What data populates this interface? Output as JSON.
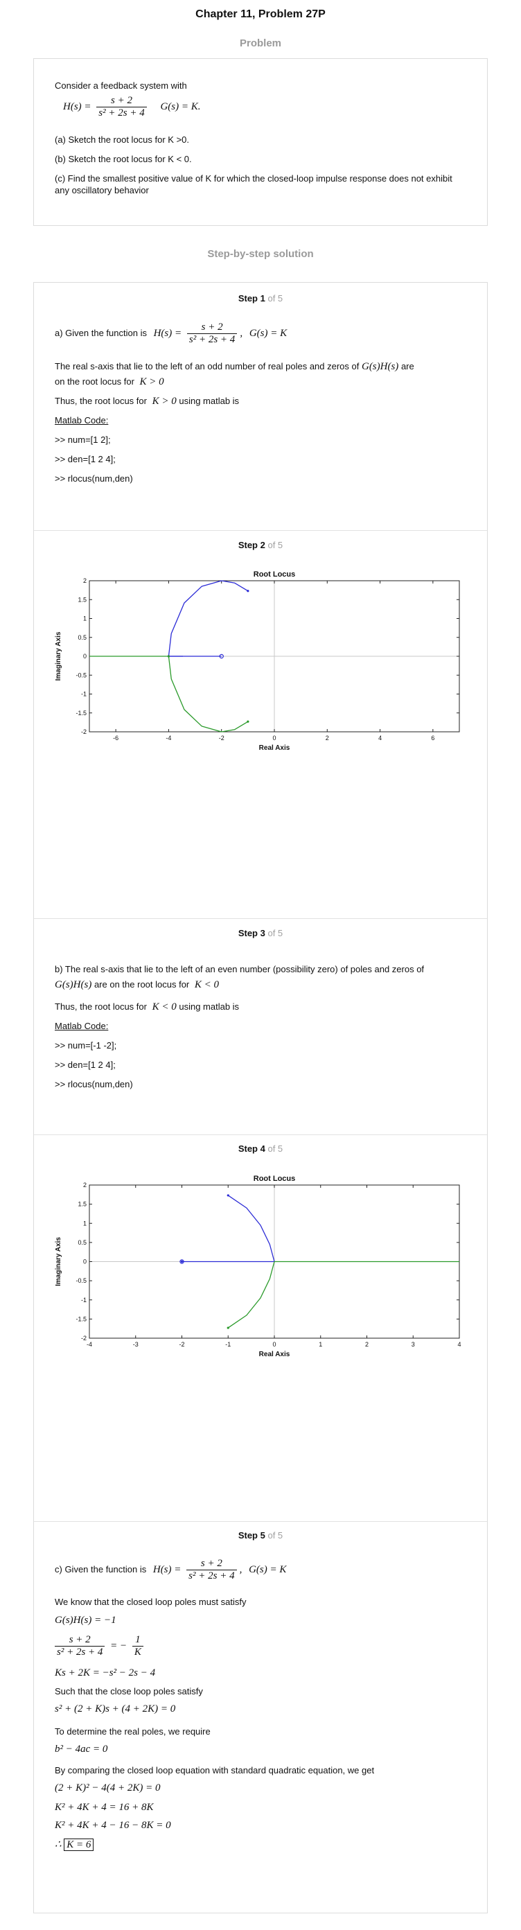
{
  "chapter_title": "Chapter 11, Problem 27P",
  "problem_heading": "Problem",
  "problem": {
    "intro": "Consider a feedback system with",
    "H_label": "H(s) =",
    "H_num": "s + 2",
    "H_den": "s² + 2s + 4",
    "G_label": "G(s) = K.",
    "a": "(a) Sketch the root locus for K >0.",
    "b": "(b) Sketch the root locus for K < 0.",
    "c": "(c) Find the smallest positive value of K for which the closed-loop impulse response does not exhibit any oscillatory behavior"
  },
  "solution_heading": "Step-by-step solution",
  "steps": [
    {
      "label": "Step 1",
      "of": "of 5"
    },
    {
      "label": "Step 2",
      "of": "of 5"
    },
    {
      "label": "Step 3",
      "of": "of 5"
    },
    {
      "label": "Step 4",
      "of": "of 5"
    },
    {
      "label": "Step 5",
      "of": "of 5"
    }
  ],
  "step1": {
    "given": "a) Given the function is",
    "H_lhs": "H(s) =",
    "H_num": "s + 2",
    "H_den": "s² + 2s + 4",
    "G_eq": "G(s) = K",
    "p1": "The real s-axis that lie to the left of an odd number of real poles and zeros of",
    "p1_math": "G(s)H(s)",
    "p1_end": "are",
    "p2": "on the root locus for",
    "p2_math": "K > 0",
    "p3": "Thus, the root locus for",
    "p3_math": "K > 0",
    "p3_end": "using matlab is",
    "code_label": "Matlab Code:",
    "code": [
      ">> num=[1 2];",
      ">> den=[1 2 4];",
      ">> rlocus(num,den)"
    ]
  },
  "step3": {
    "p1": "b) The real s-axis that lie to the left of an even number (possibility zero) of poles and zeros of",
    "p2_math": "G(s)H(s)",
    "p2": "are on the root locus for",
    "p2_math2": "K < 0",
    "p3": "Thus, the root locus for",
    "p3_math": "K < 0",
    "p3_end": "using matlab is",
    "code_label": "Matlab Code:",
    "code": [
      ">> num=[-1 -2];",
      ">> den=[1 2 4];",
      ">> rlocus(num,den)"
    ]
  },
  "step5": {
    "given": "c) Given the function is",
    "H_lhs": "H(s) =",
    "H_num": "s + 2",
    "H_den": "s² + 2s + 4",
    "G_eq": "G(s) = K",
    "p1": "We know that the closed loop poles must satisfy",
    "eq1": "G(s)H(s) = −1",
    "eq2_num": "s + 2",
    "eq2_den": "s² + 2s + 4",
    "eq2_rhs": "= −",
    "eq2_rnum": "1",
    "eq2_rden": "K",
    "eq3": "Ks + 2K = −s² − 2s − 4",
    "p2": "Such that the close loop poles satisfy",
    "eq4": "s² + (2 + K)s + (4 + 2K) = 0",
    "p3": "To determine the real poles, we require",
    "eq5": "b² − 4ac = 0",
    "p4": "By comparing the closed loop equation with standard quadratic equation, we get",
    "eq6": "(2 + K)² − 4(4 + 2K) = 0",
    "eq7": "K² + 4K + 4 = 16 + 8K",
    "eq8": "K² + 4K + 4 − 16 − 8K = 0",
    "therefore": "∴",
    "eq9": "K = 6"
  },
  "chart_data": [
    {
      "type": "line",
      "title": "Root Locus",
      "xlabel": "Real Axis",
      "ylabel": "Imaginary Axis",
      "xlim": [
        -7,
        7
      ],
      "ylim": [
        -2,
        2
      ],
      "xticks": [
        -6,
        -4,
        -2,
        0,
        2,
        4,
        6
      ],
      "yticks": [
        -2,
        -1.5,
        -1,
        -0.5,
        0,
        0.5,
        1,
        1.5,
        2
      ],
      "grid": "axes only",
      "series": [
        {
          "color": "#2b2bd6",
          "x": [
            -1,
            -1.5,
            -2,
            -2.75,
            -3.41,
            -3.9,
            -4,
            -3.46
          ],
          "y": [
            1.73,
            1.94,
            2,
            1.85,
            1.41,
            0.6,
            0,
            0
          ]
        },
        {
          "color": "#2b2bd6",
          "x": [
            -4,
            -2
          ],
          "y": [
            0,
            0
          ]
        },
        {
          "color": "#2a9a2a",
          "x": [
            -1,
            -1.5,
            -2,
            -2.75,
            -3.41,
            -3.9,
            -4
          ],
          "y": [
            -1.73,
            -1.94,
            -2,
            -1.85,
            -1.41,
            -0.6,
            0
          ]
        },
        {
          "color": "#2a9a2a",
          "x": [
            -4,
            -7
          ],
          "y": [
            0,
            0
          ]
        }
      ],
      "points": [
        {
          "x": -2,
          "y": 0,
          "color": "#2b2bd6"
        }
      ]
    },
    {
      "type": "line",
      "title": "Root Locus",
      "xlabel": "Real Axis",
      "ylabel": "Imaginary Axis",
      "xlim": [
        -4,
        4
      ],
      "ylim": [
        -2,
        2
      ],
      "xticks": [
        -4,
        -3,
        -2,
        -1,
        0,
        1,
        2,
        3,
        4
      ],
      "yticks": [
        -2,
        -1.5,
        -1,
        -0.5,
        0,
        0.5,
        1,
        1.5,
        2
      ],
      "grid": "axes only",
      "series": [
        {
          "color": "#2b2bd6",
          "x": [
            -1,
            -0.6,
            -0.3,
            -0.1,
            0
          ],
          "y": [
            1.73,
            1.4,
            0.95,
            0.45,
            0
          ]
        },
        {
          "color": "#2b2bd6",
          "x": [
            -2,
            0
          ],
          "y": [
            0,
            0
          ]
        },
        {
          "color": "#2a9a2a",
          "x": [
            -1,
            -0.6,
            -0.3,
            -0.1,
            0
          ],
          "y": [
            -1.73,
            -1.4,
            -0.95,
            -0.45,
            0
          ]
        },
        {
          "color": "#2a9a2a",
          "x": [
            0,
            4
          ],
          "y": [
            0,
            0
          ]
        }
      ],
      "points": [
        {
          "x": -2,
          "y": 0,
          "color": "#2b2bd6"
        }
      ]
    }
  ]
}
